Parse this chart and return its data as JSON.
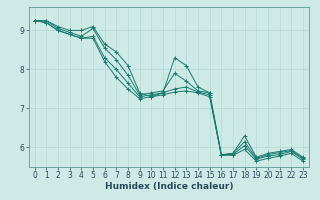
{
  "xlabel": "Humidex (Indice chaleur)",
  "background_color": "#ceeae6",
  "grid_color_major": "#aed4d0",
  "grid_color_minor": "#c4e4e0",
  "line_color": "#1a7a6e",
  "xlim": [
    -0.5,
    23.5
  ],
  "ylim": [
    5.5,
    9.6
  ],
  "yticks": [
    6,
    7,
    8,
    9
  ],
  "xticks": [
    0,
    1,
    2,
    3,
    4,
    5,
    6,
    7,
    8,
    9,
    10,
    11,
    12,
    13,
    14,
    15,
    16,
    17,
    18,
    19,
    20,
    21,
    22,
    23
  ],
  "series": [
    [
      9.25,
      9.25,
      9.1,
      9.0,
      9.0,
      9.1,
      8.65,
      8.45,
      8.1,
      7.4,
      7.3,
      7.4,
      8.3,
      8.1,
      7.55,
      7.4,
      5.8,
      5.85,
      6.3,
      5.75,
      5.85,
      5.9,
      5.95,
      5.75
    ],
    [
      9.25,
      9.25,
      9.05,
      8.95,
      8.85,
      9.05,
      8.55,
      8.25,
      7.85,
      7.35,
      7.4,
      7.45,
      7.9,
      7.7,
      7.45,
      7.4,
      5.82,
      5.85,
      6.15,
      5.72,
      5.82,
      5.87,
      5.92,
      5.72
    ],
    [
      9.25,
      9.2,
      9.0,
      8.9,
      8.8,
      8.85,
      8.3,
      8.0,
      7.65,
      7.3,
      7.35,
      7.4,
      7.5,
      7.55,
      7.42,
      7.35,
      5.82,
      5.82,
      6.05,
      5.7,
      5.78,
      5.82,
      5.9,
      5.7
    ],
    [
      9.25,
      9.2,
      9.0,
      8.9,
      8.8,
      8.8,
      8.2,
      7.8,
      7.5,
      7.25,
      7.3,
      7.35,
      7.42,
      7.45,
      7.4,
      7.3,
      5.8,
      5.8,
      5.95,
      5.65,
      5.72,
      5.78,
      5.85,
      5.65
    ]
  ],
  "tick_fontsize": 5.5,
  "xlabel_fontsize": 6.5,
  "spine_color": "#5a9a94",
  "tick_color": "#2a4a5c"
}
